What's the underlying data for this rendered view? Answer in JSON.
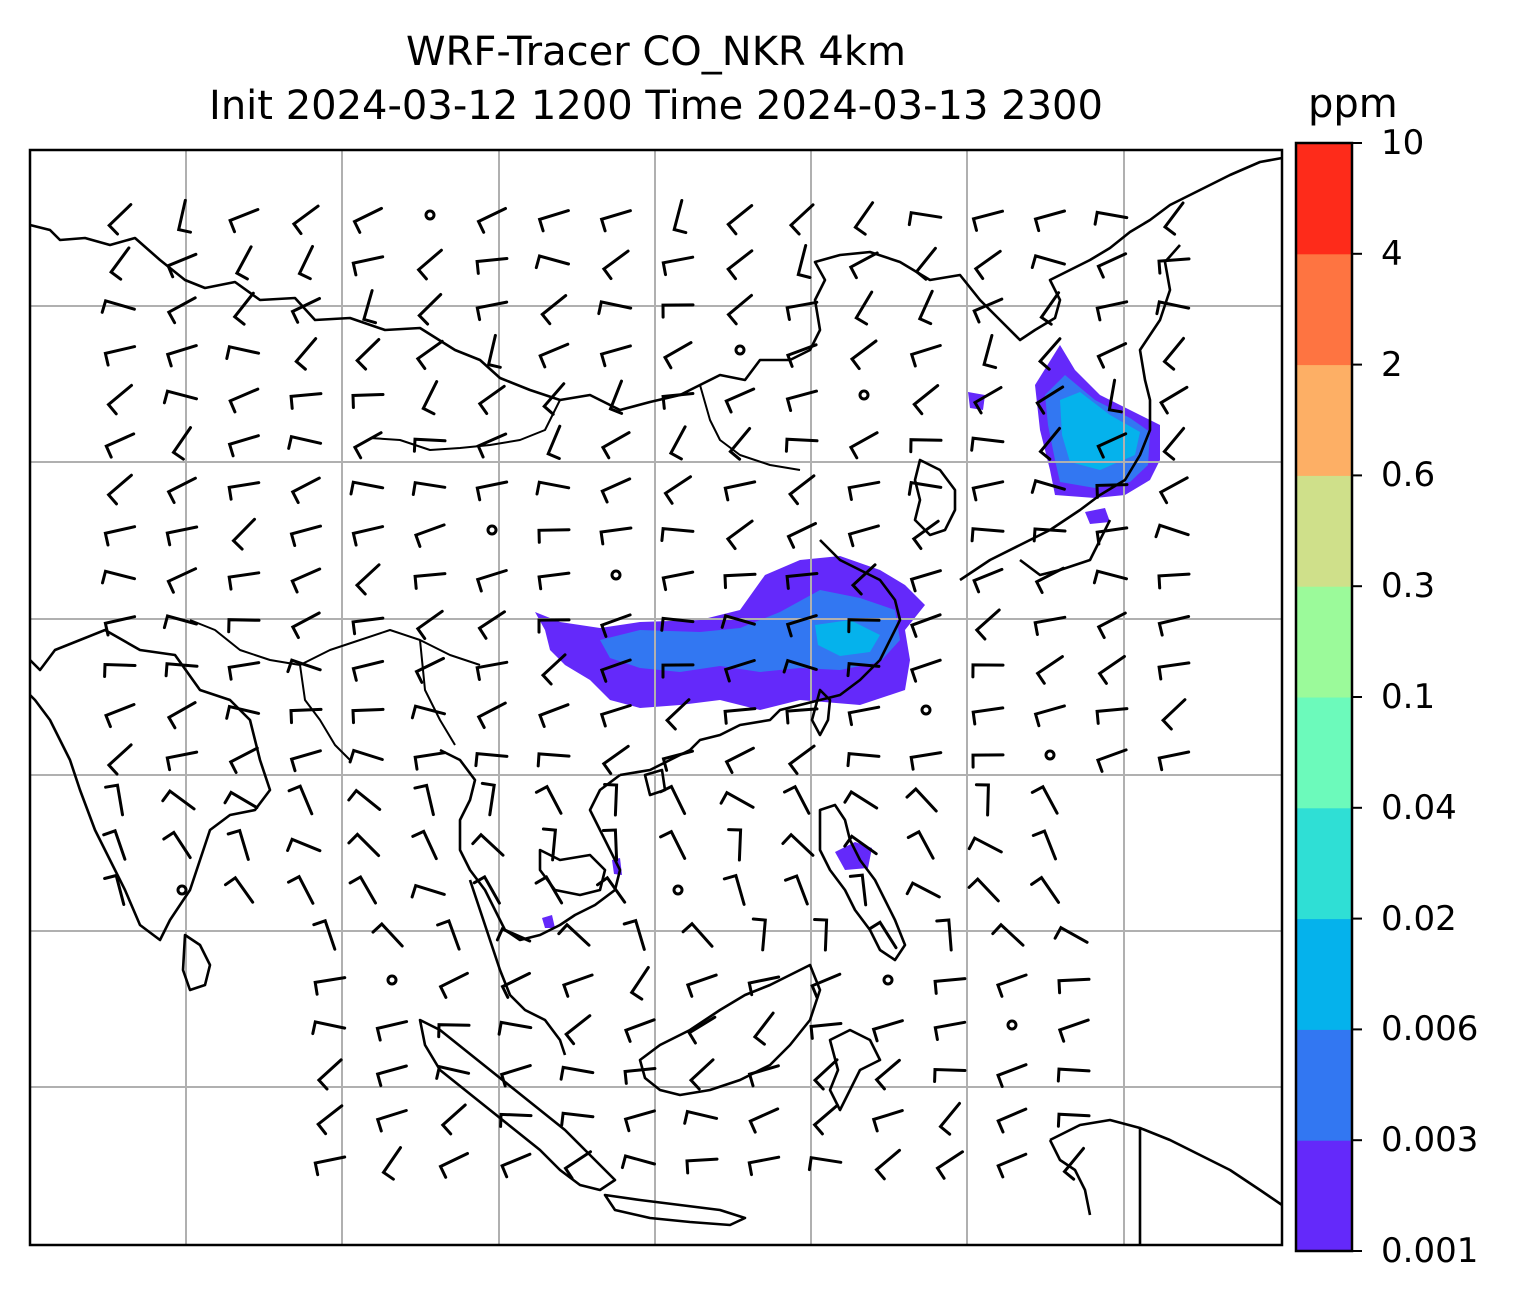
{
  "header": {
    "title_line1": "WRF-Tracer CO_NKR 4km",
    "title_line2": "Init 2024-03-12 1200 Time 2024-03-13 2300"
  },
  "colorbar": {
    "units": "ppm",
    "levels": [
      "0.001",
      "0.003",
      "0.006",
      "0.02",
      "0.04",
      "0.1",
      "0.3",
      "0.6",
      "2",
      "4",
      "10"
    ],
    "colors": [
      "#6429fa",
      "#3277f2",
      "#05b2ec",
      "#2fdfd5",
      "#6cfabb",
      "#9bfa9a",
      "#cfe08a",
      "#fdaf65",
      "#fe7441",
      "#fe2b1a"
    ]
  },
  "map": {
    "coastline_color": "#000000",
    "grid_color": "#b0b0b0",
    "tracer_plumes": [
      {
        "region": "southern-china",
        "level": "0.003-0.006"
      },
      {
        "region": "korea-japan",
        "level": "0.006-0.02"
      },
      {
        "region": "philippines",
        "level": "0.001-0.003"
      }
    ],
    "wind_barbs": "wind-barbs"
  }
}
